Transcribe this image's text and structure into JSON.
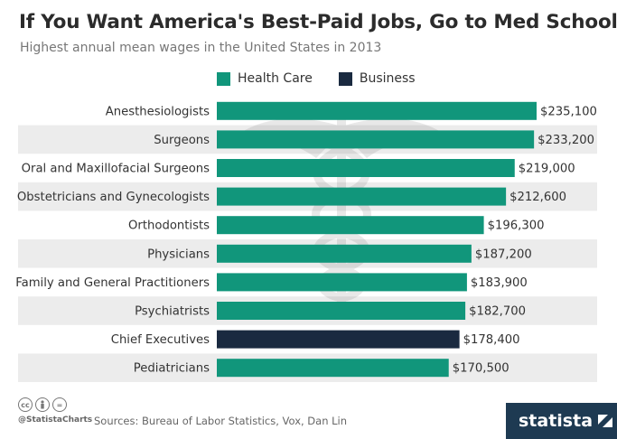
{
  "title": "If You Want America's Best-Paid Jobs, Go to Med School",
  "subtitle": "Highest annual mean wages in the United States in 2013",
  "colors": {
    "health_care": "#11967b",
    "business": "#1a2a40",
    "row_alt": "#ececec",
    "logo_bg": "#1e3a52"
  },
  "legend": [
    {
      "label": "Health Care",
      "color": "#11967b"
    },
    {
      "label": "Business",
      "color": "#1a2a40"
    }
  ],
  "chart_data": {
    "type": "bar",
    "orientation": "horizontal",
    "categories": [
      "Anesthesiologists",
      "Surgeons",
      "Oral and Maxillofacial Surgeons",
      "Obstetricians and Gynecologists",
      "Orthodontists",
      "Physicians",
      "Family and General Practitioners",
      "Psychiatrists",
      "Chief Executives",
      "Pediatricians"
    ],
    "values": [
      235100,
      233200,
      219000,
      212600,
      196300,
      187200,
      183900,
      182700,
      178400,
      170500
    ],
    "value_labels": [
      "$235,100",
      "$233,200",
      "$219,000",
      "$212,600",
      "$196,300",
      "$187,200",
      "$183,900",
      "$182,700",
      "$178,400",
      "$170,500"
    ],
    "groups": [
      "Health Care",
      "Health Care",
      "Health Care",
      "Health Care",
      "Health Care",
      "Health Care",
      "Health Care",
      "Health Care",
      "Business",
      "Health Care"
    ],
    "xlim": [
      0,
      235100
    ],
    "grid": false,
    "legend_position": "top"
  },
  "footer": {
    "cc_icons": [
      "cc",
      "by",
      "="
    ],
    "handle": "@StatistaCharts",
    "source": "Sources: Bureau of Labor Statistics, Vox, Dan Lin",
    "logo": "statista"
  }
}
